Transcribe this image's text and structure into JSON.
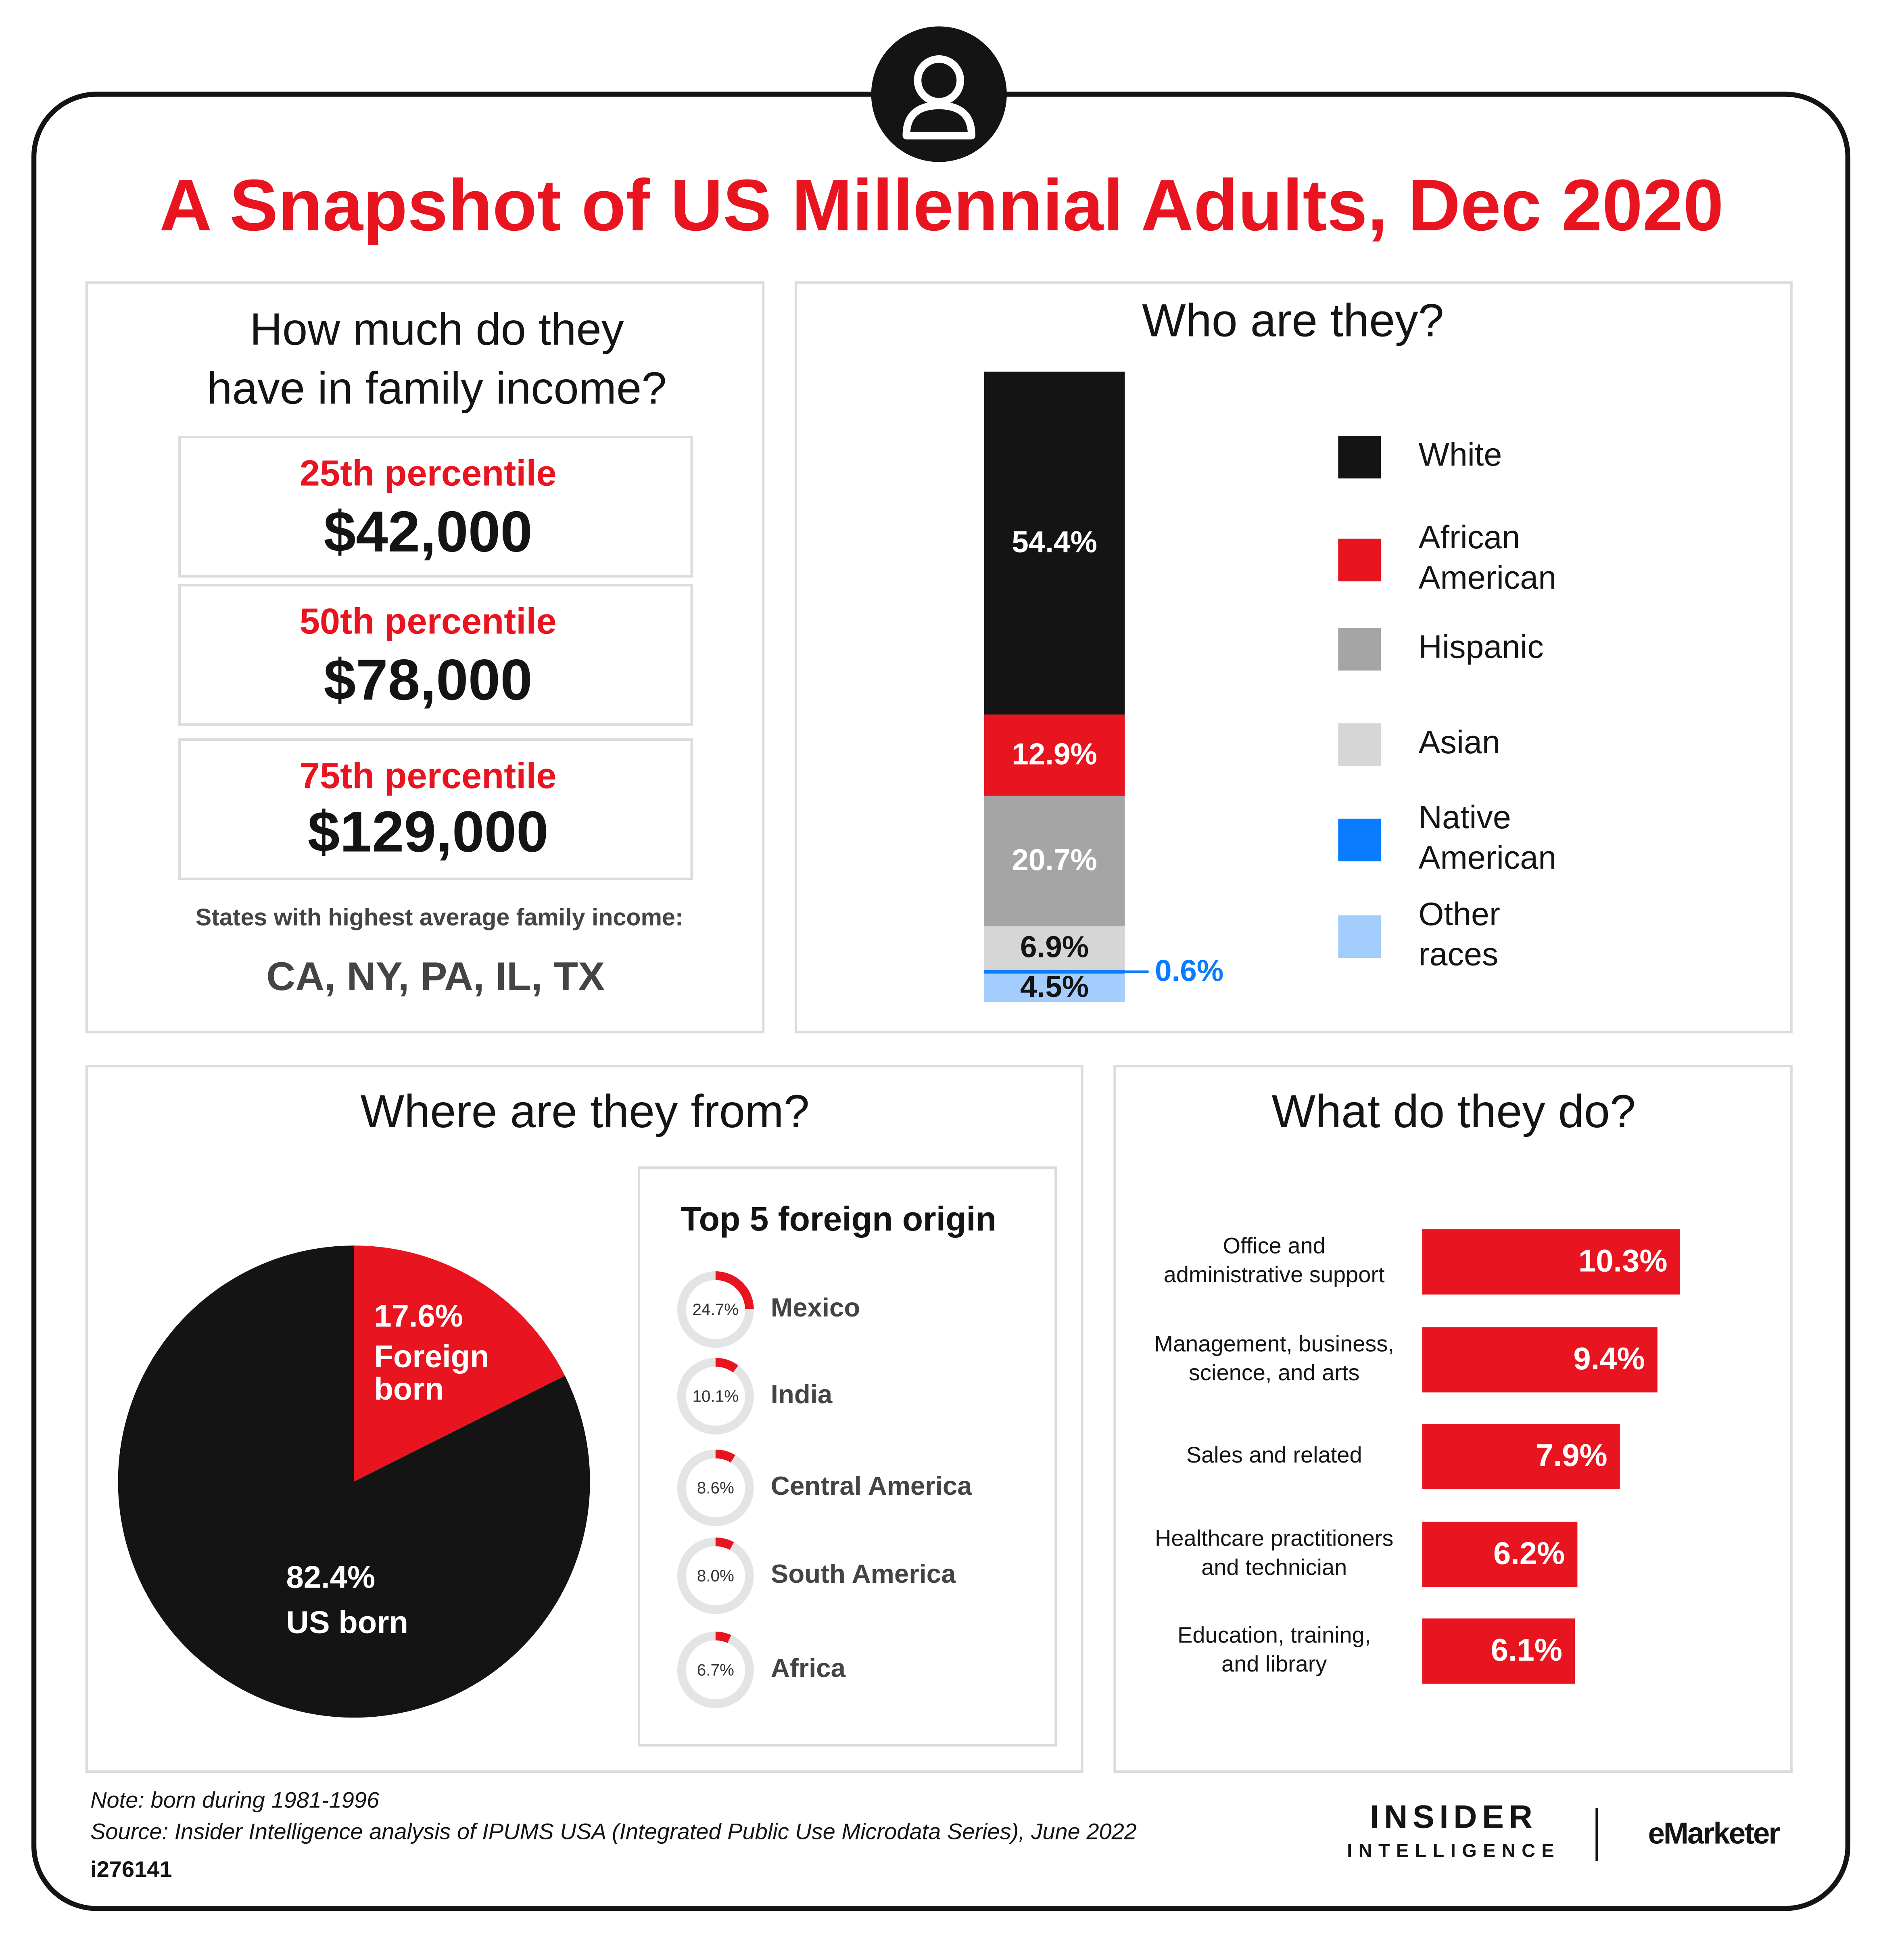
{
  "title": "A Snapshot of US Millennial Adults, Dec 2020",
  "income": {
    "title": [
      "How much do they",
      "have in family income?"
    ],
    "percentiles": [
      {
        "label": "25th percentile",
        "amount": "$42,000"
      },
      {
        "label": "50th percentile",
        "amount": "$78,000"
      },
      {
        "label": "75th percentile",
        "amount": "$129,000"
      }
    ],
    "states_label": "States with highest average family income:",
    "states": "CA, NY, PA, IL, TX"
  },
  "chart_data": [
    {
      "type": "stacked_bar",
      "title": "Who are they?",
      "ylim": [
        0,
        100
      ],
      "series": [
        {
          "name": "White",
          "color": "#141414",
          "values": [
            54.4
          ],
          "value_labels": [
            "54.4%"
          ]
        },
        {
          "name": "African American",
          "color": "#e8141f",
          "values": [
            12.9
          ],
          "value_labels": [
            "12.9%"
          ]
        },
        {
          "name": "Hispanic",
          "color": "#a5a5a5",
          "values": [
            20.7
          ],
          "value_labels": [
            "20.7%"
          ]
        },
        {
          "name": "Asian",
          "color": "#d6d6d6",
          "values": [
            6.9
          ],
          "value_labels": [
            "6.9%"
          ]
        },
        {
          "name": "Native American",
          "color": "#0a7cff",
          "values": [
            0.6
          ],
          "value_labels": [
            "0.6%"
          ]
        },
        {
          "name": "Other races",
          "color": "#a3cdfc",
          "values": [
            4.5
          ],
          "value_labels": [
            "4.5%"
          ]
        }
      ]
    },
    {
      "type": "pie",
      "title": "Where are they from?",
      "categories": [
        "Foreign born",
        "US born"
      ],
      "values": [
        17.6,
        82.4
      ],
      "value_labels": [
        "17.6%",
        "82.4%"
      ],
      "colors": [
        "#e8141f",
        "#141414"
      ]
    },
    {
      "type": "donut",
      "title": "Top 5 foreign origin",
      "categories": [
        "Mexico",
        "India",
        "Central America",
        "South America",
        "Africa"
      ],
      "values": [
        24.7,
        10.1,
        8.6,
        8.0,
        6.7
      ],
      "value_labels": [
        "24.7%",
        "10.1%",
        "8.6%",
        "8.0%",
        "6.7%"
      ],
      "range": [
        0,
        100
      ],
      "color": "#e8141f",
      "track_color": "#e4e4e4"
    },
    {
      "type": "hbar",
      "title": "What do they do?",
      "categories": [
        [
          "Office and",
          "administrative support"
        ],
        [
          "Management, business,",
          "science, and arts"
        ],
        [
          "Sales and related"
        ],
        [
          "Healthcare practitioners",
          "and technician"
        ],
        [
          "Education, training,",
          "and library"
        ]
      ],
      "values": [
        10.3,
        9.4,
        7.9,
        6.2,
        6.1
      ],
      "value_labels": [
        "10.3%",
        "9.4%",
        "7.9%",
        "6.2%",
        "6.1%"
      ],
      "color": "#e8141f",
      "xlim": [
        0,
        14
      ]
    }
  ],
  "note": "Note: born during 1981-1996",
  "source": "Source: Insider Intelligence analysis of IPUMS USA (Integrated Public Use Microdata Series), June 2022",
  "id": "i276141",
  "logos": [
    "INSIDER",
    "INTELLIGENCE",
    "eMarketer"
  ]
}
